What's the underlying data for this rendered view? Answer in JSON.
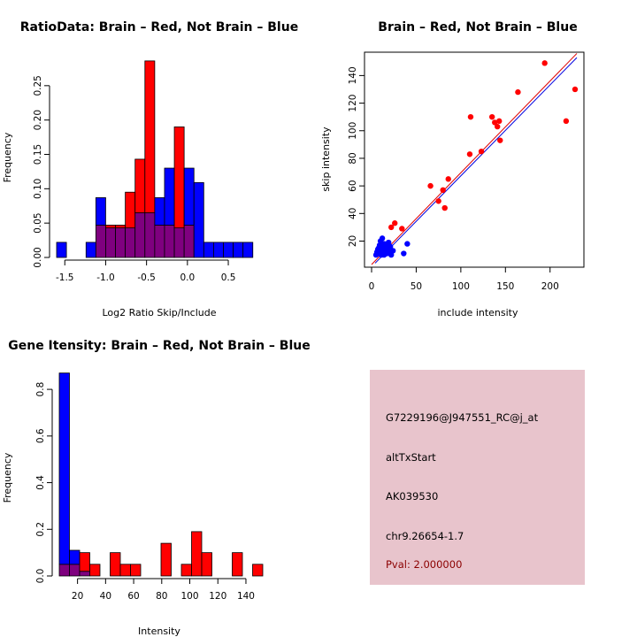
{
  "colors": {
    "red": "#ff0000",
    "blue": "#0000ff",
    "overlap": "#7f007f",
    "panel_bg": "#e8c4cc",
    "pval_text": "#8b0000",
    "fit_red": "#e00000",
    "fit_blue": "#0000e0"
  },
  "chart_data": [
    {
      "id": "ratio",
      "type": "bar",
      "title": "RatioData: Brain – Red, Not Brain – Blue",
      "xlabel": "Log2 Ratio Skip/Include",
      "ylabel": "Frequency",
      "xlim": [
        -1.6,
        0.9
      ],
      "ylim": [
        0,
        0.3
      ],
      "xticks": [
        -1.5,
        -1.0,
        -0.5,
        0.0,
        0.5
      ],
      "xtick_labels": [
        "-1.5",
        "-1.0",
        "-0.5",
        "0.0",
        "0.5"
      ],
      "yticks": [
        0.0,
        0.05,
        0.1,
        0.15,
        0.2,
        0.25
      ],
      "ytick_labels": [
        "0.00",
        "0.05",
        "0.10",
        "0.15",
        "0.20",
        "0.25"
      ],
      "bin_start": -1.6,
      "bin_width": 0.12,
      "series": [
        {
          "name": "Not Brain",
          "color": "blue",
          "values": [
            0.022,
            0,
            0,
            0.022,
            0.087,
            0.043,
            0.043,
            0.043,
            0.065,
            0.065,
            0.087,
            0.13,
            0.043,
            0.13,
            0.109,
            0.022,
            0.022,
            0.022,
            0.022,
            0.022
          ]
        },
        {
          "name": "Brain",
          "color": "red",
          "values": [
            0,
            0,
            0,
            0,
            0.047,
            0.047,
            0.047,
            0.095,
            0.143,
            0.286,
            0.047,
            0.047,
            0.19,
            0.047,
            0,
            0,
            0,
            0,
            0,
            0
          ]
        }
      ]
    },
    {
      "id": "scatter",
      "type": "scatter",
      "title": "Brain – Red, Not Brain – Blue",
      "xlabel": "include intensity",
      "ylabel": "skip intensity",
      "xlim": [
        0,
        230
      ],
      "ylim": [
        3,
        155
      ],
      "xticks": [
        0,
        50,
        100,
        150,
        200
      ],
      "xtick_labels": [
        "0",
        "50",
        "100",
        "150",
        "200"
      ],
      "yticks": [
        20,
        40,
        60,
        80,
        100,
        120,
        140
      ],
      "ytick_labels": [
        "20",
        "40",
        "60",
        "80",
        "100",
        "120",
        "140"
      ],
      "series": [
        {
          "name": "Brain",
          "color": "red",
          "points": [
            [
              22,
              30
            ],
            [
              26,
              33
            ],
            [
              34,
              29
            ],
            [
              66,
              60
            ],
            [
              75,
              49
            ],
            [
              80,
              57
            ],
            [
              82,
              44
            ],
            [
              86,
              65
            ],
            [
              110,
              83
            ],
            [
              111,
              110
            ],
            [
              123,
              85
            ],
            [
              135,
              110
            ],
            [
              138,
              106
            ],
            [
              141,
              103
            ],
            [
              143,
              107
            ],
            [
              144,
              93
            ],
            [
              164,
              128
            ],
            [
              194,
              149
            ],
            [
              218,
              107
            ],
            [
              228,
              130
            ]
          ]
        },
        {
          "name": "Not Brain",
          "color": "blue",
          "points": [
            [
              5,
              10
            ],
            [
              6,
              12
            ],
            [
              7,
              14
            ],
            [
              8,
              11
            ],
            [
              8,
              15
            ],
            [
              9,
              13
            ],
            [
              9,
              17
            ],
            [
              10,
              12
            ],
            [
              10,
              20
            ],
            [
              11,
              10
            ],
            [
              11,
              16
            ],
            [
              12,
              22
            ],
            [
              12,
              14
            ],
            [
              13,
              12
            ],
            [
              14,
              18
            ],
            [
              14,
              10
            ],
            [
              15,
              13
            ],
            [
              16,
              16
            ],
            [
              17,
              11
            ],
            [
              18,
              14
            ],
            [
              19,
              19
            ],
            [
              20,
              12
            ],
            [
              21,
              16
            ],
            [
              22,
              10
            ],
            [
              24,
              13
            ],
            [
              36,
              11
            ],
            [
              40,
              18
            ]
          ]
        }
      ],
      "fit_lines": [
        {
          "name": "Brain fit",
          "color": "fit_red",
          "from": [
            0,
            3
          ],
          "to": [
            230,
            156
          ]
        },
        {
          "name": "Not Brain fit",
          "color": "fit_blue",
          "from": [
            4,
            4
          ],
          "to": [
            230,
            153
          ]
        }
      ]
    },
    {
      "id": "intensity",
      "type": "bar",
      "title": "Gene Itensity: Brain – Red, Not Brain – Blue",
      "xlabel": "Intensity",
      "ylabel": "Frequency",
      "xlim": [
        7,
        152
      ],
      "ylim": [
        0,
        0.88
      ],
      "xticks": [
        20,
        40,
        60,
        80,
        100,
        120,
        140
      ],
      "xtick_labels": [
        "20",
        "40",
        "60",
        "80",
        "100",
        "120",
        "140"
      ],
      "yticks": [
        0.0,
        0.2,
        0.4,
        0.6,
        0.8
      ],
      "ytick_labels": [
        "0.0",
        "0.2",
        "0.4",
        "0.6",
        "0.8"
      ],
      "bin_start": 7,
      "bin_width": 7.25,
      "series": [
        {
          "name": "Not Brain",
          "color": "blue",
          "values": [
            0.87,
            0.11,
            0.02,
            0,
            0,
            0,
            0,
            0,
            0,
            0,
            0,
            0,
            0,
            0,
            0,
            0,
            0,
            0,
            0,
            0
          ]
        },
        {
          "name": "Brain",
          "color": "red",
          "values": [
            0.05,
            0.05,
            0.1,
            0.05,
            0,
            0.1,
            0.05,
            0.05,
            0,
            0,
            0.14,
            0,
            0.05,
            0.19,
            0.1,
            0,
            0,
            0.1,
            0,
            0.05
          ]
        }
      ]
    }
  ],
  "info_panel": {
    "probe_id": "G7229196@J947551_RC@j_at",
    "event_type": "altTxStart",
    "accession": "AK039530",
    "location": "chr9.26654-1.7",
    "pval": "Pval: 2.000000"
  }
}
